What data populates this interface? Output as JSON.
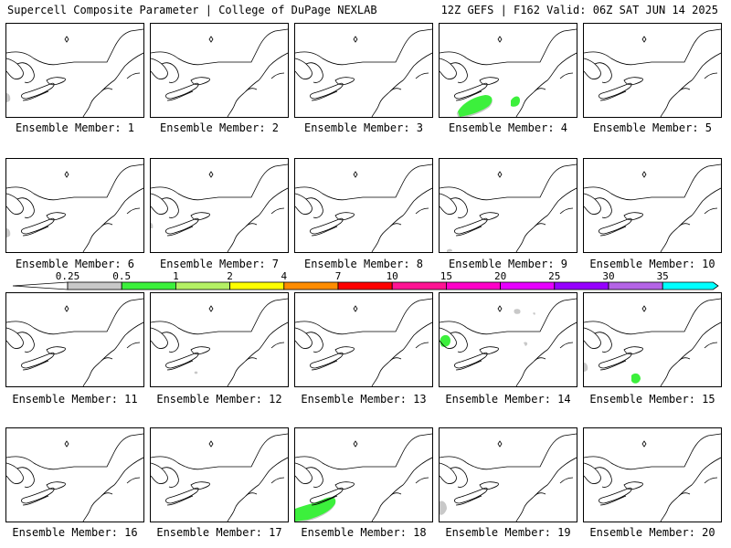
{
  "header": {
    "left_title": "Supercell Composite Parameter | College of DuPage NEXLAB",
    "right_title": "12Z GEFS | F162 Valid: 06Z SAT JUN 14 2025"
  },
  "colors": {
    "gray": "#c8c8c8",
    "green": "#3cf03c",
    "lightgreen": "#b4f064",
    "yellow": "#ffff00",
    "orange": "#ff8c00",
    "red": "#ff0000",
    "pink": "#ff1493",
    "magenta": "#ff00c8",
    "violet": "#e600ff",
    "purple": "#9600ff",
    "lavender": "#b464e6",
    "cyan": "#00ffff"
  },
  "colorbar": {
    "labels": [
      "0.25",
      "0.5",
      "1",
      "2",
      "4",
      "7",
      "10",
      "15",
      "20",
      "25",
      "30",
      "35"
    ],
    "bins": [
      {
        "range": "0.25-0.5",
        "color": "#c8c8c8"
      },
      {
        "range": "0.5-1",
        "color": "#3cf03c"
      },
      {
        "range": "1-2",
        "color": "#b4f064"
      },
      {
        "range": "2-4",
        "color": "#ffff00"
      },
      {
        "range": "4-7",
        "color": "#ff8c00"
      },
      {
        "range": "7-10",
        "color": "#ff0000"
      },
      {
        "range": "10-15",
        "color": "#ff1493"
      },
      {
        "range": "15-20",
        "color": "#ff00c8"
      },
      {
        "range": "20-25",
        "color": "#e600ff"
      },
      {
        "range": "25-30",
        "color": "#9600ff"
      },
      {
        "range": "30-35",
        "color": "#b464e6"
      },
      {
        "range": "35+",
        "color": "#00ffff"
      }
    ]
  },
  "members": [
    {
      "label": "Ensemble Member: 1",
      "blobs": [
        {
          "level": "gray",
          "where": "west-edge-south"
        }
      ]
    },
    {
      "label": "Ensemble Member: 2",
      "blobs": []
    },
    {
      "label": "Ensemble Member: 3",
      "blobs": []
    },
    {
      "label": "Ensemble Member: 4",
      "blobs": [
        {
          "level": "green",
          "where": "south-central"
        },
        {
          "level": "green",
          "where": "chesapeake"
        },
        {
          "level": "gray",
          "where": "south-central"
        }
      ]
    },
    {
      "label": "Ensemble Member: 5",
      "blobs": []
    },
    {
      "label": "Ensemble Member: 6",
      "blobs": [
        {
          "level": "gray",
          "where": "west-edge-south"
        }
      ]
    },
    {
      "label": "Ensemble Member: 7",
      "blobs": [
        {
          "level": "gray",
          "where": "west-edge"
        }
      ]
    },
    {
      "label": "Ensemble Member: 8",
      "blobs": []
    },
    {
      "label": "Ensemble Member: 9",
      "blobs": [
        {
          "level": "gray",
          "where": "south-west-corner"
        }
      ]
    },
    {
      "label": "Ensemble Member: 10",
      "blobs": []
    },
    {
      "label": "Ensemble Member: 11",
      "blobs": []
    },
    {
      "label": "Ensemble Member: 12",
      "blobs": [
        {
          "level": "gray",
          "where": "south-central-speck"
        }
      ]
    },
    {
      "label": "Ensemble Member: 13",
      "blobs": []
    },
    {
      "label": "Ensemble Member: 14",
      "blobs": [
        {
          "level": "green",
          "where": "ohio"
        },
        {
          "level": "gray",
          "where": "scattered"
        }
      ]
    },
    {
      "label": "Ensemble Member: 15",
      "blobs": [
        {
          "level": "gray",
          "where": "west-edge-south"
        },
        {
          "level": "green",
          "where": "virginia"
        }
      ]
    },
    {
      "label": "Ensemble Member: 16",
      "blobs": []
    },
    {
      "label": "Ensemble Member: 17",
      "blobs": []
    },
    {
      "label": "Ensemble Member: 18",
      "blobs": [
        {
          "level": "green",
          "where": "southwest"
        },
        {
          "level": "gray",
          "where": "southwest"
        }
      ]
    },
    {
      "label": "Ensemble Member: 19",
      "blobs": [
        {
          "level": "gray",
          "where": "southwest-small"
        }
      ]
    },
    {
      "label": "Ensemble Member: 20",
      "blobs": []
    }
  ]
}
